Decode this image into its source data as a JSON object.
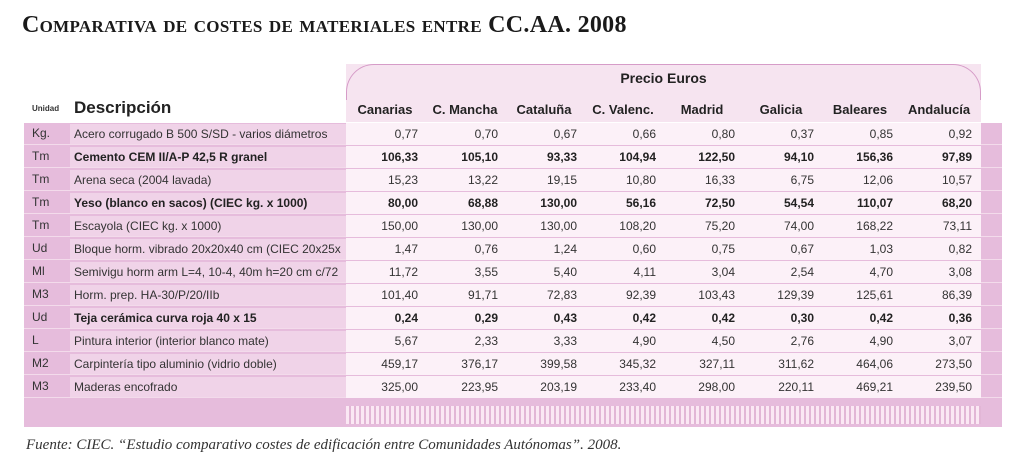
{
  "title": "Comparativa de costes de materiales entre CC.AA. 2008",
  "header": {
    "precio": "Precio Euros",
    "unidad": "Unidad",
    "descripcion": "Descripción",
    "regions": [
      "Canarias",
      "C. Mancha",
      "Cataluña",
      "C. Valenc.",
      "Madrid",
      "Galicia",
      "Baleares",
      "Andalucía"
    ]
  },
  "rows": [
    {
      "unit": "Kg.",
      "desc": "Acero corrugado B 500 S/SD - varios diámetros",
      "bold": false,
      "values": [
        "0,77",
        "0,70",
        "0,67",
        "0,66",
        "0,80",
        "0,37",
        "0,85",
        "0,92"
      ]
    },
    {
      "unit": "Tm",
      "desc": "Cemento CEM II/A-P 42,5 R granel",
      "bold": true,
      "values": [
        "106,33",
        "105,10",
        "93,33",
        "104,94",
        "122,50",
        "94,10",
        "156,36",
        "97,89"
      ]
    },
    {
      "unit": "Tm",
      "desc": "Arena seca (2004 lavada)",
      "bold": false,
      "values": [
        "15,23",
        "13,22",
        "19,15",
        "10,80",
        "16,33",
        "6,75",
        "12,06",
        "10,57"
      ]
    },
    {
      "unit": "Tm",
      "desc": "Yeso (blanco en sacos) (CIEC kg. x 1000)",
      "bold": true,
      "values": [
        "80,00",
        "68,88",
        "130,00",
        "56,16",
        "72,50",
        "54,54",
        "110,07",
        "68,20"
      ]
    },
    {
      "unit": "Tm",
      "desc": "Escayola (CIEC kg. x 1000)",
      "bold": false,
      "values": [
        "150,00",
        "130,00",
        "130,00",
        "108,20",
        "75,20",
        "74,00",
        "168,22",
        "73,11"
      ]
    },
    {
      "unit": "Ud",
      "desc": "Bloque horm. vibrado 20x20x40 cm (CIEC 20x25x",
      "bold": false,
      "values": [
        "1,47",
        "0,76",
        "1,24",
        "0,60",
        "0,75",
        "0,67",
        "1,03",
        "0,82"
      ]
    },
    {
      "unit": "Ml",
      "desc": "Semivigu horm arm L=4, 10-4, 40m h=20 cm c/72",
      "bold": false,
      "values": [
        "11,72",
        "3,55",
        "5,40",
        "4,11",
        "3,04",
        "2,54",
        "4,70",
        "3,08"
      ]
    },
    {
      "unit": "M3",
      "desc": "Horm. prep. HA-30/P/20/IIb",
      "bold": false,
      "values": [
        "101,40",
        "91,71",
        "72,83",
        "92,39",
        "103,43",
        "129,39",
        "125,61",
        "86,39"
      ]
    },
    {
      "unit": "Ud",
      "desc": "Teja cerámica curva roja 40 x 15",
      "bold": true,
      "values": [
        "0,24",
        "0,29",
        "0,43",
        "0,42",
        "0,42",
        "0,30",
        "0,42",
        "0,36"
      ]
    },
    {
      "unit": "L",
      "desc": "Pintura interior (interior blanco mate)",
      "bold": false,
      "values": [
        "5,67",
        "2,33",
        "3,33",
        "4,90",
        "4,50",
        "2,76",
        "4,90",
        "3,07"
      ]
    },
    {
      "unit": "M2",
      "desc": "Carpintería tipo aluminio (vidrio doble)",
      "bold": false,
      "values": [
        "459,17",
        "376,17",
        "399,58",
        "345,32",
        "327,11",
        "311,62",
        "464,06",
        "273,50"
      ]
    },
    {
      "unit": "M3",
      "desc": "Maderas encofrado",
      "bold": false,
      "values": [
        "325,00",
        "223,95",
        "203,19",
        "233,40",
        "298,00",
        "220,11",
        "469,21",
        "239,50"
      ]
    }
  ],
  "source": "Fuente: CIEC. “Estudio comparativo costes de edificación entre Comunidades Autónomas”. 2008."
}
